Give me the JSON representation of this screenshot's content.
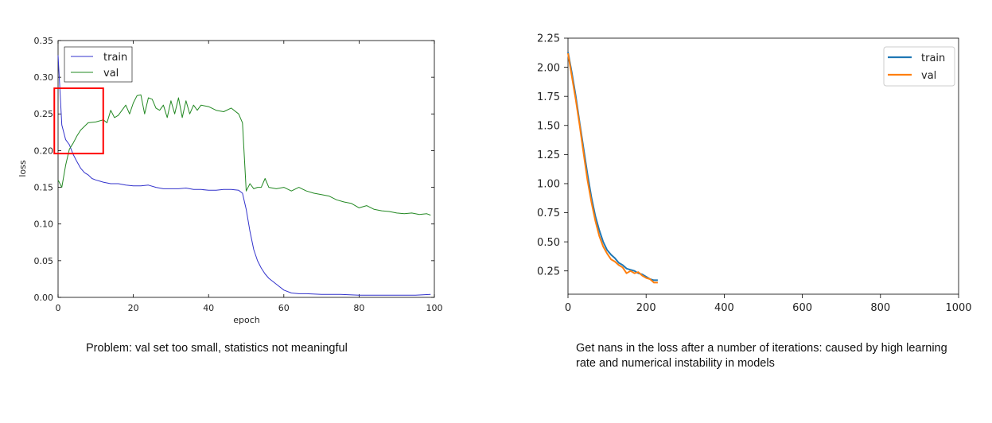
{
  "captions": {
    "left": "Problem: val set too small, statistics not meaningful",
    "right": "Get nans in the loss after a number of iterations: caused by high learning rate and numerical instability in models"
  },
  "chart_data": [
    {
      "type": "line",
      "title": "",
      "xlabel": "epoch",
      "ylabel": "loss",
      "xlim": [
        0,
        100
      ],
      "ylim": [
        0,
        0.35
      ],
      "xticks": [
        "0",
        "20",
        "40",
        "60",
        "80",
        "100"
      ],
      "yticks": [
        "0.00",
        "0.05",
        "0.10",
        "0.15",
        "0.20",
        "0.25",
        "0.30",
        "0.35"
      ],
      "legend": {
        "position": "top-left"
      },
      "grid": false,
      "annotation": {
        "type": "rectangle",
        "color": "#ff0000",
        "x_range": [
          -1,
          12
        ],
        "y_range": [
          0.196,
          0.285
        ]
      },
      "series": [
        {
          "name": "train",
          "color": "#3333cc",
          "x": [
            0,
            1,
            2,
            3,
            4,
            5,
            6,
            7,
            8,
            9,
            10,
            12,
            14,
            16,
            18,
            20,
            22,
            24,
            26,
            28,
            30,
            32,
            34,
            36,
            38,
            40,
            42,
            44,
            46,
            48,
            49,
            50,
            51,
            52,
            53,
            54,
            55,
            56,
            58,
            60,
            62,
            64,
            66,
            70,
            75,
            80,
            85,
            90,
            95,
            99
          ],
          "y": [
            0.33,
            0.235,
            0.215,
            0.208,
            0.195,
            0.185,
            0.176,
            0.17,
            0.167,
            0.162,
            0.16,
            0.157,
            0.155,
            0.155,
            0.153,
            0.152,
            0.152,
            0.153,
            0.15,
            0.148,
            0.148,
            0.148,
            0.149,
            0.147,
            0.147,
            0.146,
            0.146,
            0.147,
            0.147,
            0.146,
            0.142,
            0.12,
            0.09,
            0.065,
            0.05,
            0.04,
            0.032,
            0.026,
            0.018,
            0.01,
            0.006,
            0.005,
            0.005,
            0.004,
            0.004,
            0.003,
            0.003,
            0.003,
            0.003,
            0.004
          ]
        },
        {
          "name": "val",
          "color": "#228822",
          "x": [
            0,
            1,
            2,
            3,
            4,
            5,
            6,
            7,
            8,
            10,
            12,
            13,
            14,
            15,
            16,
            18,
            19,
            20,
            21,
            22,
            23,
            24,
            25,
            26,
            27,
            28,
            29,
            30,
            31,
            32,
            33,
            34,
            35,
            36,
            37,
            38,
            40,
            42,
            44,
            46,
            48,
            49,
            50,
            51,
            52,
            53,
            54,
            55,
            56,
            58,
            60,
            62,
            64,
            66,
            68,
            70,
            72,
            74,
            76,
            78,
            80,
            82,
            84,
            86,
            88,
            90,
            92,
            94,
            96,
            98,
            99
          ],
          "y": [
            0.16,
            0.15,
            0.18,
            0.202,
            0.21,
            0.22,
            0.228,
            0.233,
            0.238,
            0.239,
            0.242,
            0.238,
            0.255,
            0.245,
            0.248,
            0.262,
            0.25,
            0.265,
            0.275,
            0.276,
            0.25,
            0.272,
            0.27,
            0.258,
            0.255,
            0.262,
            0.245,
            0.268,
            0.25,
            0.272,
            0.245,
            0.268,
            0.25,
            0.262,
            0.255,
            0.262,
            0.26,
            0.255,
            0.253,
            0.258,
            0.25,
            0.238,
            0.145,
            0.155,
            0.148,
            0.15,
            0.15,
            0.162,
            0.15,
            0.148,
            0.15,
            0.145,
            0.15,
            0.145,
            0.142,
            0.14,
            0.138,
            0.133,
            0.13,
            0.128,
            0.122,
            0.125,
            0.12,
            0.118,
            0.117,
            0.115,
            0.114,
            0.115,
            0.113,
            0.114,
            0.112
          ]
        }
      ]
    },
    {
      "type": "line",
      "title": "",
      "xlabel": "",
      "ylabel": "",
      "xlim": [
        0,
        1000
      ],
      "ylim": [
        0.05,
        2.25
      ],
      "xticks": [
        "0",
        "200",
        "400",
        "600",
        "800",
        "1000"
      ],
      "yticks": [
        "0.25",
        "0.50",
        "0.75",
        "1.00",
        "1.25",
        "1.50",
        "1.75",
        "2.00",
        "2.25"
      ],
      "legend": {
        "position": "top-right"
      },
      "grid": false,
      "series": [
        {
          "name": "train",
          "color": "#1f77b4",
          "x": [
            0,
            10,
            20,
            30,
            40,
            50,
            60,
            70,
            80,
            90,
            100,
            110,
            120,
            130,
            140,
            150,
            160,
            170,
            180,
            190,
            200,
            210,
            220,
            230
          ],
          "y": [
            2.13,
            1.95,
            1.75,
            1.52,
            1.3,
            1.08,
            0.88,
            0.72,
            0.6,
            0.5,
            0.43,
            0.39,
            0.36,
            0.32,
            0.3,
            0.27,
            0.26,
            0.25,
            0.23,
            0.22,
            0.2,
            0.18,
            0.17,
            0.17
          ]
        },
        {
          "name": "val",
          "color": "#ff7f0e",
          "x": [
            0,
            10,
            20,
            30,
            40,
            50,
            60,
            70,
            80,
            90,
            100,
            110,
            120,
            130,
            140,
            150,
            160,
            170,
            180,
            190,
            200,
            210,
            220,
            230
          ],
          "y": [
            2.12,
            1.92,
            1.72,
            1.5,
            1.26,
            1.03,
            0.84,
            0.68,
            0.55,
            0.46,
            0.4,
            0.35,
            0.33,
            0.3,
            0.28,
            0.23,
            0.25,
            0.23,
            0.24,
            0.21,
            0.19,
            0.18,
            0.15,
            0.15
          ]
        }
      ]
    }
  ]
}
